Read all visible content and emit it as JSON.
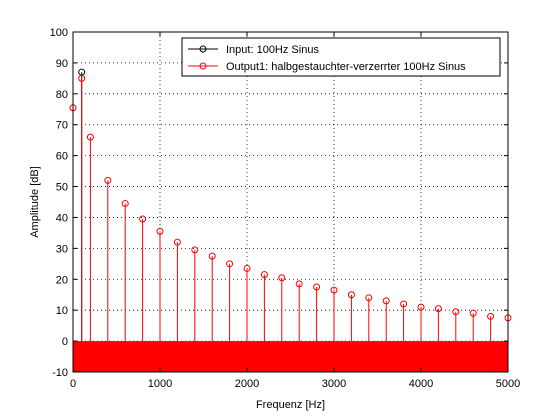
{
  "chart_data": {
    "type": "stem",
    "title": "",
    "xlabel": "Frequenz [Hz]",
    "ylabel": "Amplitude [dB]",
    "xlim": [
      0,
      5000
    ],
    "ylim": [
      -10,
      100
    ],
    "x_ticks": [
      0,
      1000,
      2000,
      3000,
      4000,
      5000
    ],
    "y_ticks": [
      -10,
      0,
      10,
      20,
      30,
      40,
      50,
      60,
      70,
      80,
      90,
      100
    ],
    "grid": true,
    "legend_position": "top-right",
    "series": [
      {
        "name": "Input: 100Hz Sinus",
        "color": "#000000",
        "marker": "circle",
        "x": [
          100
        ],
        "values": [
          87
        ]
      },
      {
        "name": "Output1: halbgestauchter-verzerrter 100Hz Sinus",
        "color": "#ff0000",
        "marker": "circle",
        "x": [
          0,
          100,
          200,
          400,
          600,
          800,
          1000,
          1200,
          1400,
          1600,
          1800,
          2000,
          2200,
          2400,
          2600,
          2800,
          3000,
          3200,
          3400,
          3600,
          3800,
          4000,
          4200,
          4400,
          4600,
          4800,
          5000
        ],
        "values": [
          75.5,
          85,
          66,
          52,
          44.5,
          39.5,
          35.5,
          32,
          29.5,
          27.5,
          25,
          23.5,
          21.5,
          20.5,
          18.5,
          17.5,
          16.5,
          15,
          14,
          13,
          12,
          11,
          10.5,
          9.5,
          9,
          8,
          7.5
        ],
        "baseline_band_values": [
          -10,
          0
        ]
      }
    ]
  }
}
